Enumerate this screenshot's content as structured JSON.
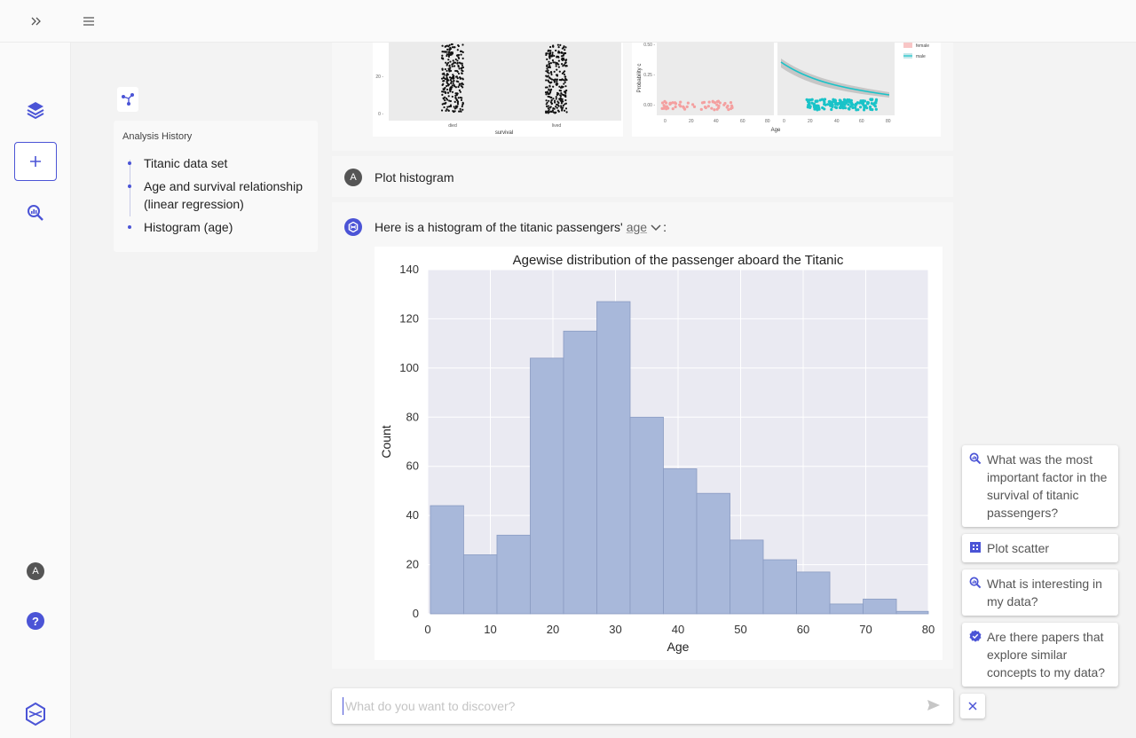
{
  "history": {
    "title": "Analysis History",
    "items": [
      {
        "label": "Titanic data set"
      },
      {
        "label": "Age and survival relationship (linear regression)"
      },
      {
        "label": "Histogram (age)"
      }
    ]
  },
  "rail": {
    "avatar_letter": "A",
    "help_glyph": "?"
  },
  "question": {
    "avatar_letter": "A",
    "text": "Plot histogram"
  },
  "answer": {
    "text_before": "Here is a histogram of the titanic passengers'",
    "variable": "age",
    "text_after": ":"
  },
  "prev_chart_texts": {
    "survival_xlabel": "survival",
    "survival_cats": [
      "died",
      "lived"
    ],
    "ylabel_partial": "Probability c",
    "age_xlabel": "Age",
    "legend": [
      "female",
      "male"
    ]
  },
  "chart_data": {
    "type": "bar",
    "title": "Agewise distribution of the passenger aboard the Titanic",
    "xlabel": "Age",
    "ylabel": "Count",
    "xlim": [
      0,
      80
    ],
    "ylim": [
      0,
      140
    ],
    "xticks": [
      "0",
      "10",
      "20",
      "30",
      "40",
      "50",
      "60",
      "70",
      "80"
    ],
    "yticks": [
      "0",
      "20",
      "40",
      "60",
      "80",
      "100",
      "120",
      "140"
    ],
    "bins": [
      {
        "x0": 0.42,
        "x1": 5.74,
        "count": 44
      },
      {
        "x0": 5.74,
        "x1": 11.06,
        "count": 24
      },
      {
        "x0": 11.06,
        "x1": 16.38,
        "count": 32
      },
      {
        "x0": 16.38,
        "x1": 21.7,
        "count": 104
      },
      {
        "x0": 21.7,
        "x1": 27.02,
        "count": 115
      },
      {
        "x0": 27.02,
        "x1": 32.34,
        "count": 127
      },
      {
        "x0": 32.34,
        "x1": 37.66,
        "count": 80
      },
      {
        "x0": 37.66,
        "x1": 42.98,
        "count": 59
      },
      {
        "x0": 42.98,
        "x1": 48.3,
        "count": 49
      },
      {
        "x0": 48.3,
        "x1": 53.62,
        "count": 30
      },
      {
        "x0": 53.62,
        "x1": 58.94,
        "count": 22
      },
      {
        "x0": 58.94,
        "x1": 64.26,
        "count": 17
      },
      {
        "x0": 64.26,
        "x1": 69.58,
        "count": 4
      },
      {
        "x0": 69.58,
        "x1": 74.9,
        "count": 6
      },
      {
        "x0": 74.9,
        "x1": 80.22,
        "count": 1
      }
    ],
    "bar_color": "#a8b8da",
    "grid": true
  },
  "input": {
    "placeholder": "What do you want to discover?"
  },
  "suggestions": [
    {
      "text": "What was the most important factor in the survival of titanic passengers?",
      "icon": "search-insight-icon"
    },
    {
      "text": "Plot scatter",
      "icon": "grid-icon"
    },
    {
      "text": "What is interesting in my data?",
      "icon": "search-insight-icon"
    },
    {
      "text": "Are there papers that explore similar concepts to my data?",
      "icon": "verified-badge-icon"
    }
  ],
  "colors": {
    "accent": "#4b54d6",
    "teal": "#19c3c8",
    "salmon": "#f4a0a0"
  }
}
